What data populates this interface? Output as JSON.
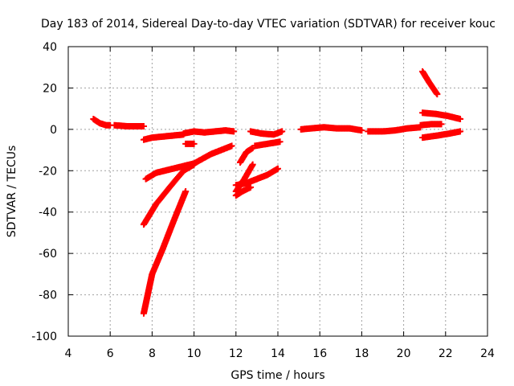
{
  "chart_data": {
    "type": "scatter",
    "title": "Day 183 of 2014, Sidereal Day-to-day VTEC variation (SDTVAR) for receiver kouc",
    "xlabel": "GPS time / hours",
    "ylabel": "SDTVAR / TECUs",
    "xlim": [
      4,
      24
    ],
    "ylim": [
      -100,
      40
    ],
    "xticks": [
      4,
      6,
      8,
      10,
      12,
      14,
      16,
      18,
      20,
      22,
      24
    ],
    "yticks": [
      40,
      20,
      0,
      -20,
      -40,
      -60,
      -80,
      -100
    ],
    "grid": true,
    "grid_style": "dotted",
    "legend": "none",
    "marker": "plus",
    "color": "#ff0000",
    "series": [
      {
        "x": [
          5.2,
          5.5,
          5.8,
          6.0
        ],
        "y": [
          5,
          3,
          2,
          2
        ]
      },
      {
        "x": [
          6.2,
          6.8,
          7.3,
          7.6
        ],
        "y": [
          2,
          1.5,
          1.5,
          1.5
        ]
      },
      {
        "x": [
          7.6,
          8.0,
          8.5,
          9.0,
          9.5
        ],
        "y": [
          -5,
          -4,
          -3.5,
          -3,
          -2.5
        ]
      },
      {
        "x": [
          9.5,
          10.0,
          10.5,
          11.0,
          11.5,
          11.9
        ],
        "y": [
          -2,
          -1,
          -1.5,
          -1,
          -0.5,
          -1
        ]
      },
      {
        "x": [
          9.6,
          10.0
        ],
        "y": [
          -7,
          -7
        ]
      },
      {
        "x": [
          7.7,
          8.2,
          9.0,
          10.0,
          10.8,
          11.8
        ],
        "y": [
          -24,
          -21,
          -19,
          -16.5,
          -12,
          -8
        ]
      },
      {
        "x": [
          7.6,
          8.2,
          9.0,
          9.5,
          10.0
        ],
        "y": [
          -46,
          -36,
          -26,
          -20,
          -17
        ]
      },
      {
        "x": [
          7.6,
          8.0,
          8.5,
          9.0,
          9.6
        ],
        "y": [
          -89,
          -70,
          -58,
          -45,
          -30
        ]
      },
      {
        "x": [
          12.0,
          12.5,
          13.0,
          13.5,
          14.0
        ],
        "y": [
          -27,
          -26,
          -24,
          -22,
          -19
        ]
      },
      {
        "x": [
          12.0,
          12.4,
          12.8
        ],
        "y": [
          -30,
          -24,
          -17
        ]
      },
      {
        "x": [
          12.0,
          12.3,
          12.7
        ],
        "y": [
          -32,
          -30,
          -28
        ]
      },
      {
        "x": [
          12.2,
          12.5,
          12.8
        ],
        "y": [
          -16,
          -11,
          -9
        ]
      },
      {
        "x": [
          12.9,
          13.5,
          14.1
        ],
        "y": [
          -8,
          -7,
          -6
        ]
      },
      {
        "x": [
          12.7,
          13.2,
          13.8,
          14.2
        ],
        "y": [
          -1,
          -2,
          -2.5,
          -1
        ]
      },
      {
        "x": [
          15.1,
          15.6,
          16.2,
          16.8,
          17.4,
          18.0
        ],
        "y": [
          0,
          0.5,
          1,
          0.5,
          0.5,
          -0.5
        ]
      },
      {
        "x": [
          18.3,
          19.0,
          19.6,
          20.2,
          20.8
        ],
        "y": [
          -1,
          -1,
          -0.5,
          0.5,
          1
        ]
      },
      {
        "x": [
          20.8,
          21.3,
          21.8
        ],
        "y": [
          2,
          2.5,
          2.5
        ]
      },
      {
        "x": [
          20.9,
          21.6,
          22.2,
          22.7
        ],
        "y": [
          -4,
          -3,
          -2,
          -1
        ]
      },
      {
        "x": [
          20.9,
          21.5,
          22.1,
          22.7
        ],
        "y": [
          8,
          7.5,
          6.5,
          5
        ]
      },
      {
        "x": [
          20.9,
          21.2,
          21.6
        ],
        "y": [
          28,
          23,
          17
        ]
      }
    ]
  }
}
